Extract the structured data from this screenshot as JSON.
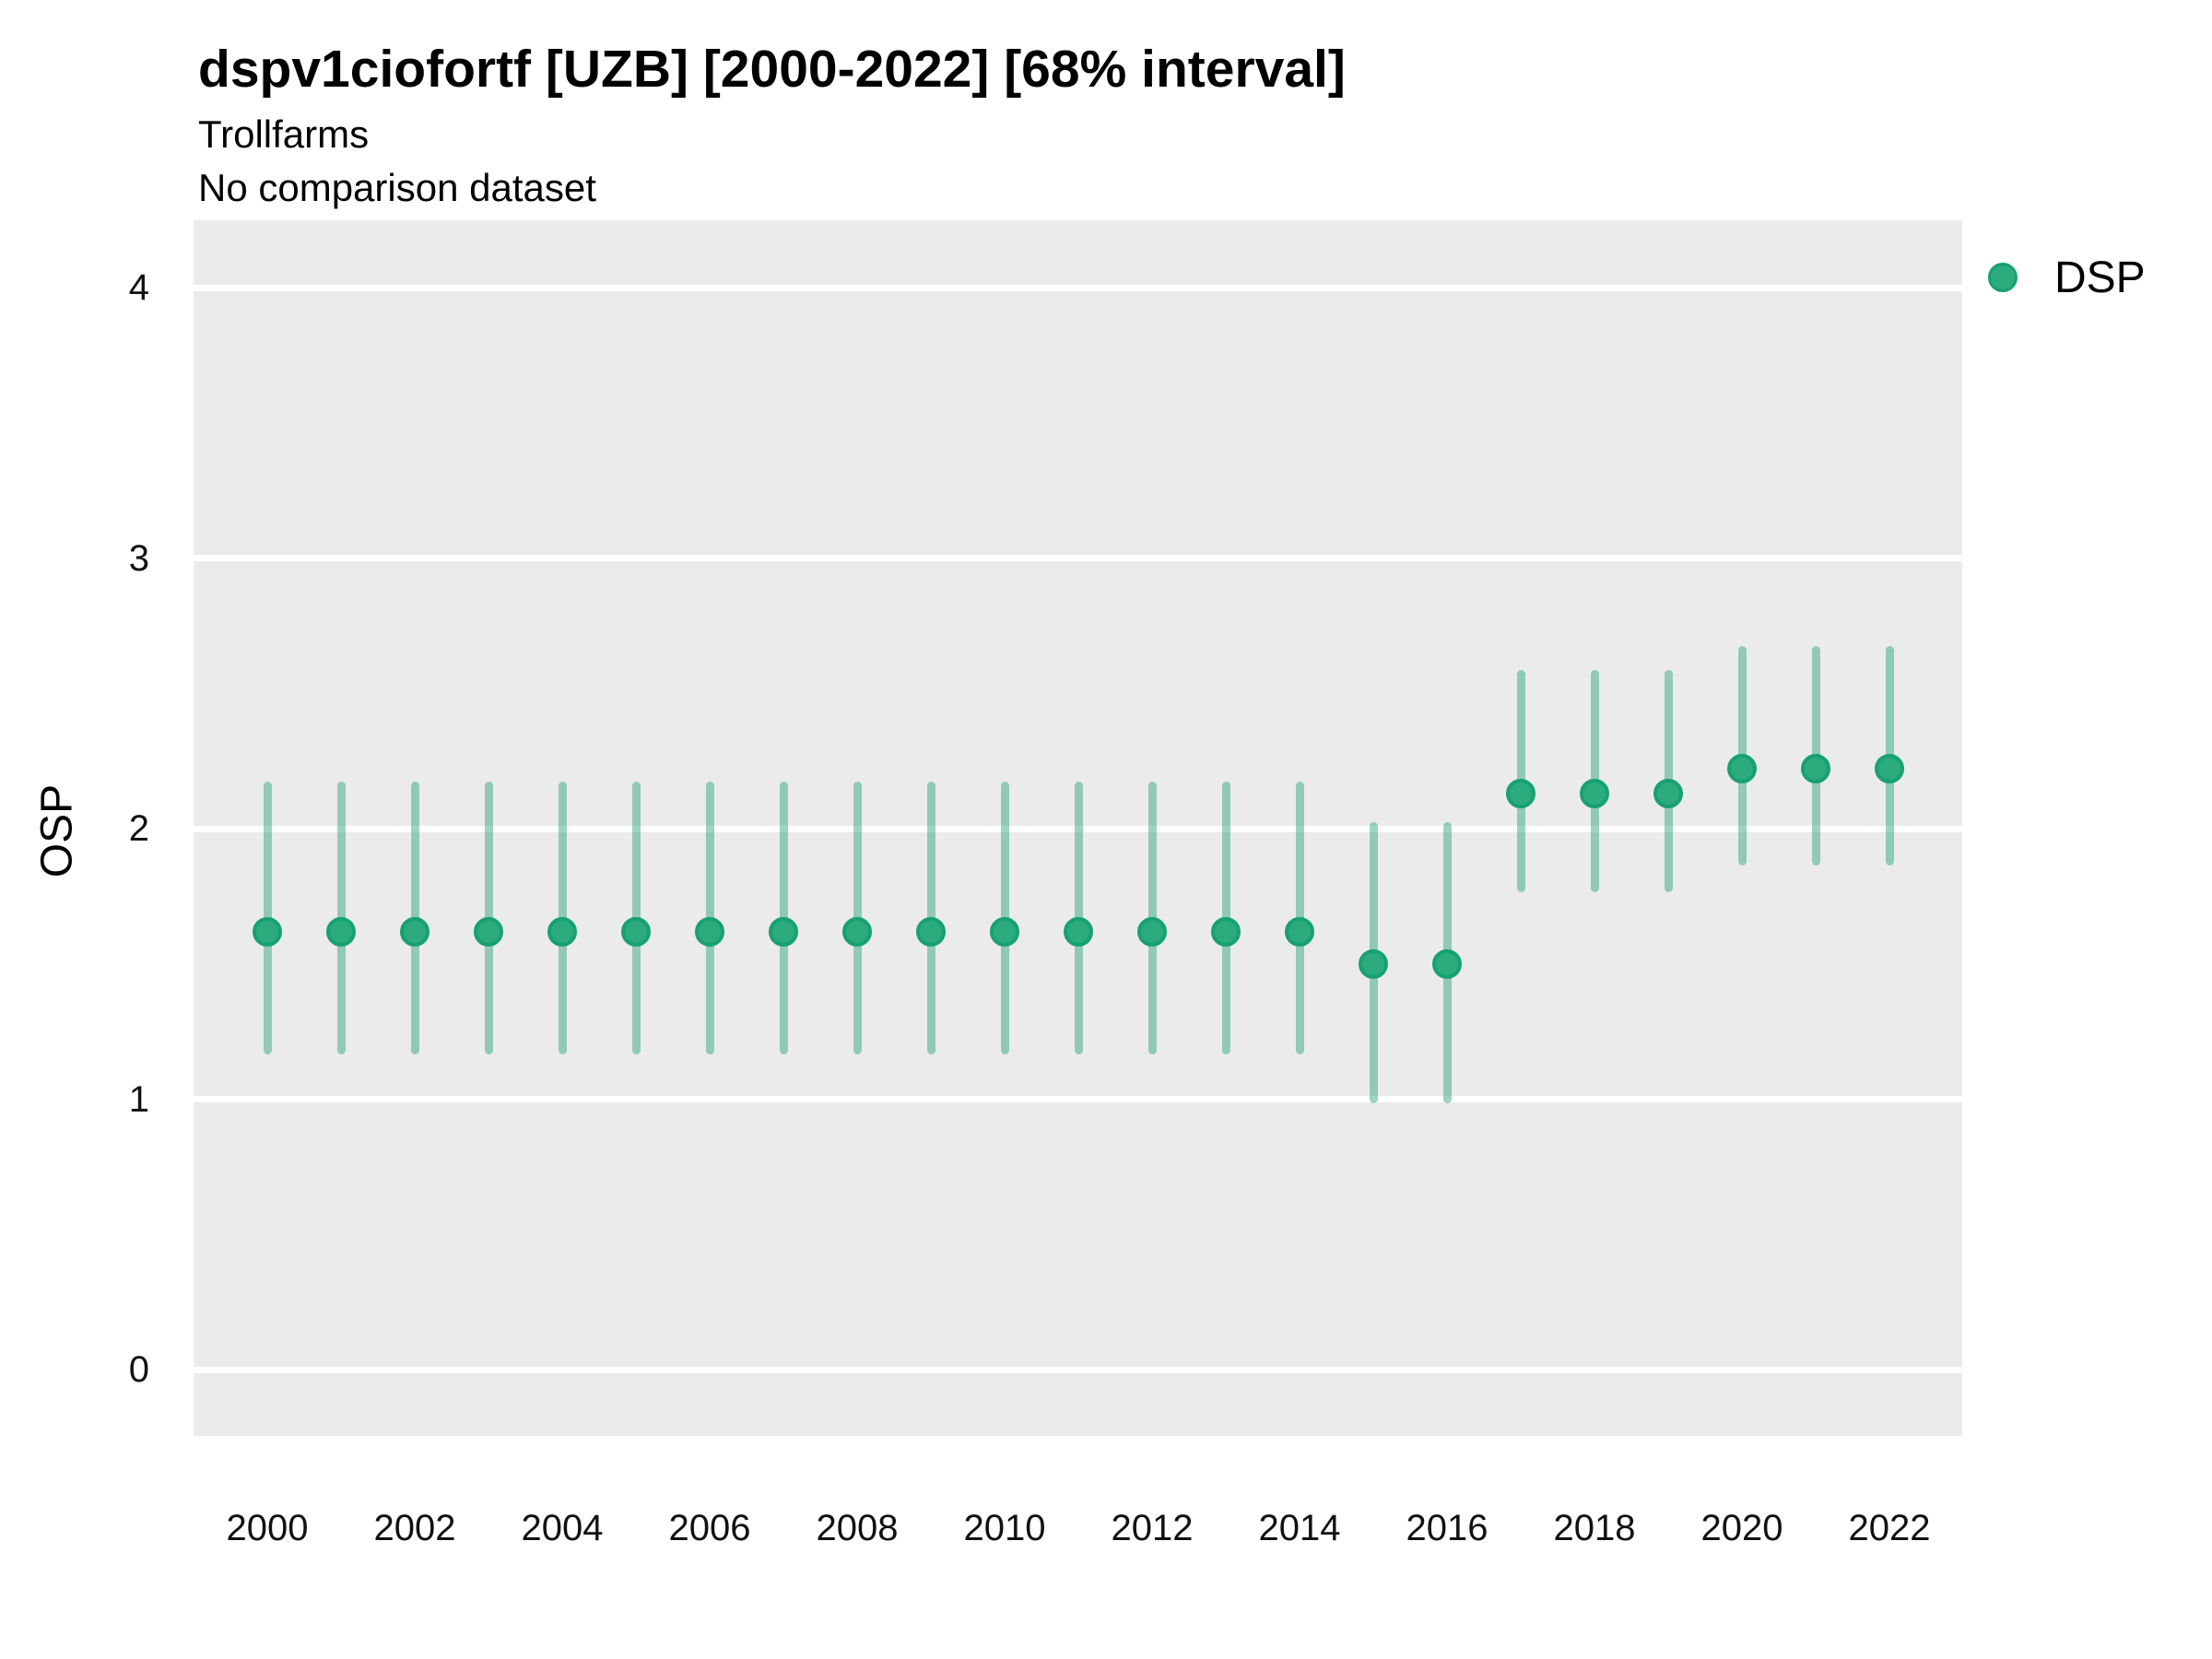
{
  "title": "dspv1ciofortf [UZB] [2000-2022] [68% interval]",
  "subtitle1": "Trollfarms",
  "subtitle2": "No comparison dataset",
  "y_axis_title": "OSP",
  "legend": {
    "label": "DSP"
  },
  "colors": {
    "panel_background": "#EBEBEB",
    "gridline": "#FFFFFF",
    "point_fill": "#2CAB7C",
    "point_stroke": "#17A173",
    "interval_color": "#2CA678",
    "interval_opacity": 0.47,
    "text": "#000000",
    "tick_text": "#111111"
  },
  "chart_data": {
    "type": "pointrange",
    "title": "dspv1ciofortf [UZB] [2000-2022] [68% interval]",
    "subtitle": "Trollfarms",
    "note": "No comparison dataset",
    "interval": "68%",
    "xlabel": "",
    "ylabel": "OSP",
    "xlim": [
      1999,
      2023.2
    ],
    "ylim": [
      -0.25,
      4.25
    ],
    "x_ticks": [
      2000,
      2002,
      2004,
      2006,
      2008,
      2010,
      2012,
      2014,
      2016,
      2018,
      2020,
      2022
    ],
    "y_ticks": [
      0,
      1,
      2,
      3,
      4
    ],
    "grid": "major-horizontal",
    "legend_position": "right-top",
    "series": [
      {
        "name": "DSP",
        "points": [
          {
            "year": 2000,
            "value": 1.62,
            "lower": 1.18,
            "upper": 2.16
          },
          {
            "year": 2001,
            "value": 1.62,
            "lower": 1.18,
            "upper": 2.16
          },
          {
            "year": 2002,
            "value": 1.62,
            "lower": 1.18,
            "upper": 2.16
          },
          {
            "year": 2003,
            "value": 1.62,
            "lower": 1.18,
            "upper": 2.16
          },
          {
            "year": 2004,
            "value": 1.62,
            "lower": 1.18,
            "upper": 2.16
          },
          {
            "year": 2005,
            "value": 1.62,
            "lower": 1.18,
            "upper": 2.16
          },
          {
            "year": 2006,
            "value": 1.62,
            "lower": 1.18,
            "upper": 2.16
          },
          {
            "year": 2007,
            "value": 1.62,
            "lower": 1.18,
            "upper": 2.16
          },
          {
            "year": 2008,
            "value": 1.62,
            "lower": 1.18,
            "upper": 2.16
          },
          {
            "year": 2009,
            "value": 1.62,
            "lower": 1.18,
            "upper": 2.16
          },
          {
            "year": 2010,
            "value": 1.62,
            "lower": 1.18,
            "upper": 2.16
          },
          {
            "year": 2011,
            "value": 1.62,
            "lower": 1.18,
            "upper": 2.16
          },
          {
            "year": 2012,
            "value": 1.62,
            "lower": 1.18,
            "upper": 2.16
          },
          {
            "year": 2013,
            "value": 1.62,
            "lower": 1.18,
            "upper": 2.16
          },
          {
            "year": 2014,
            "value": 1.62,
            "lower": 1.18,
            "upper": 2.16
          },
          {
            "year": 2015,
            "value": 1.5,
            "lower": 1.0,
            "upper": 2.01
          },
          {
            "year": 2016,
            "value": 1.5,
            "lower": 1.0,
            "upper": 2.01
          },
          {
            "year": 2017,
            "value": 2.13,
            "lower": 1.78,
            "upper": 2.57
          },
          {
            "year": 2018,
            "value": 2.13,
            "lower": 1.78,
            "upper": 2.57
          },
          {
            "year": 2019,
            "value": 2.13,
            "lower": 1.78,
            "upper": 2.57
          },
          {
            "year": 2020,
            "value": 2.22,
            "lower": 1.88,
            "upper": 2.66
          },
          {
            "year": 2021,
            "value": 2.22,
            "lower": 1.88,
            "upper": 2.66
          },
          {
            "year": 2022,
            "value": 2.22,
            "lower": 1.88,
            "upper": 2.66
          }
        ]
      }
    ]
  }
}
